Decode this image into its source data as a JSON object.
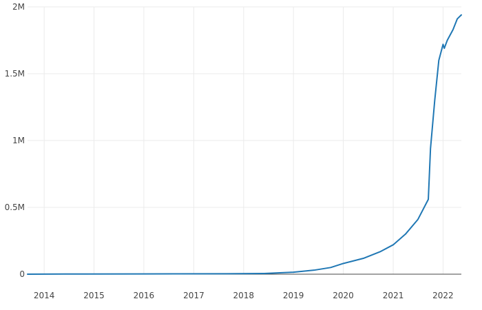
{
  "chart_data": {
    "type": "line",
    "title": "",
    "xlabel": "",
    "ylabel": "",
    "x_axis": {
      "kind": "date",
      "range": [
        "2013-09-01",
        "2022-05-15"
      ],
      "ticks": [
        {
          "value": "2014-01-01",
          "label": "2014"
        },
        {
          "value": "2015-01-01",
          "label": "2015"
        },
        {
          "value": "2016-01-01",
          "label": "2016"
        },
        {
          "value": "2017-01-01",
          "label": "2017"
        },
        {
          "value": "2018-01-01",
          "label": "2018"
        },
        {
          "value": "2019-01-01",
          "label": "2019"
        },
        {
          "value": "2020-01-01",
          "label": "2020"
        },
        {
          "value": "2021-01-01",
          "label": "2021"
        },
        {
          "value": "2022-01-01",
          "label": "2022"
        }
      ]
    },
    "y_axis": {
      "range": [
        0,
        2000000
      ],
      "ticks": [
        {
          "value": 0,
          "label": "0"
        },
        {
          "value": 500000,
          "label": "0.5M"
        },
        {
          "value": 1000000,
          "label": "1M"
        },
        {
          "value": 1500000,
          "label": "1.5M"
        },
        {
          "value": 2000000,
          "label": "2M"
        }
      ]
    },
    "grid": true,
    "legend": "none",
    "series": [
      {
        "color": "#1f77b4",
        "points": [
          {
            "x": "2013-09-01",
            "y": 0
          },
          {
            "x": "2014-06-01",
            "y": 1000
          },
          {
            "x": "2016-01-01",
            "y": 2000
          },
          {
            "x": "2017-09-01",
            "y": 3000
          },
          {
            "x": "2018-06-01",
            "y": 5000
          },
          {
            "x": "2019-01-01",
            "y": 15000
          },
          {
            "x": "2019-06-01",
            "y": 30000
          },
          {
            "x": "2019-10-01",
            "y": 50000
          },
          {
            "x": "2020-01-01",
            "y": 80000
          },
          {
            "x": "2020-06-01",
            "y": 120000
          },
          {
            "x": "2020-10-01",
            "y": 170000
          },
          {
            "x": "2021-01-01",
            "y": 220000
          },
          {
            "x": "2021-04-01",
            "y": 300000
          },
          {
            "x": "2021-07-01",
            "y": 410000
          },
          {
            "x": "2021-09-15",
            "y": 560000
          },
          {
            "x": "2021-10-01",
            "y": 940000
          },
          {
            "x": "2021-11-01",
            "y": 1300000
          },
          {
            "x": "2021-12-01",
            "y": 1600000
          },
          {
            "x": "2022-01-01",
            "y": 1720000
          },
          {
            "x": "2022-01-10",
            "y": 1690000
          },
          {
            "x": "2022-02-01",
            "y": 1750000
          },
          {
            "x": "2022-03-15",
            "y": 1830000
          },
          {
            "x": "2022-04-15",
            "y": 1910000
          },
          {
            "x": "2022-05-15",
            "y": 1940000
          }
        ]
      }
    ]
  }
}
